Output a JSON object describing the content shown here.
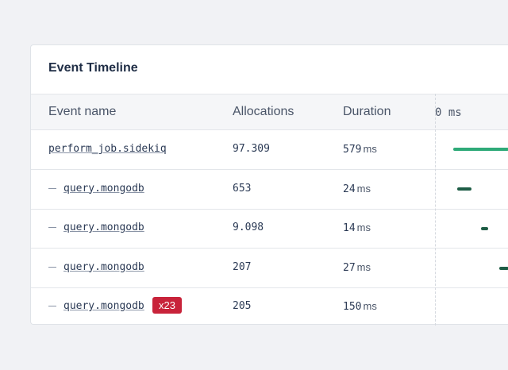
{
  "header": {
    "title": "Event Timeline"
  },
  "table": {
    "columns": [
      "Event name",
      "Allocations",
      "Duration",
      "0 ms"
    ],
    "rows": [
      {
        "name": "perform_job.sidekiq",
        "allocations": "97.309",
        "duration": 579,
        "unit": "ms"
      },
      {
        "name": "query.mongodb",
        "allocations": "653",
        "duration": 24,
        "unit": "ms"
      },
      {
        "name": "query.mongodb",
        "allocations": "9.098",
        "duration": 14,
        "unit": "ms"
      },
      {
        "name": "query.mongodb",
        "allocations": "207",
        "duration": 27,
        "unit": "ms"
      },
      {
        "name": "query.mongodb",
        "badge": "x23",
        "allocations": "205",
        "duration": 150,
        "unit": "ms"
      }
    ]
  }
}
